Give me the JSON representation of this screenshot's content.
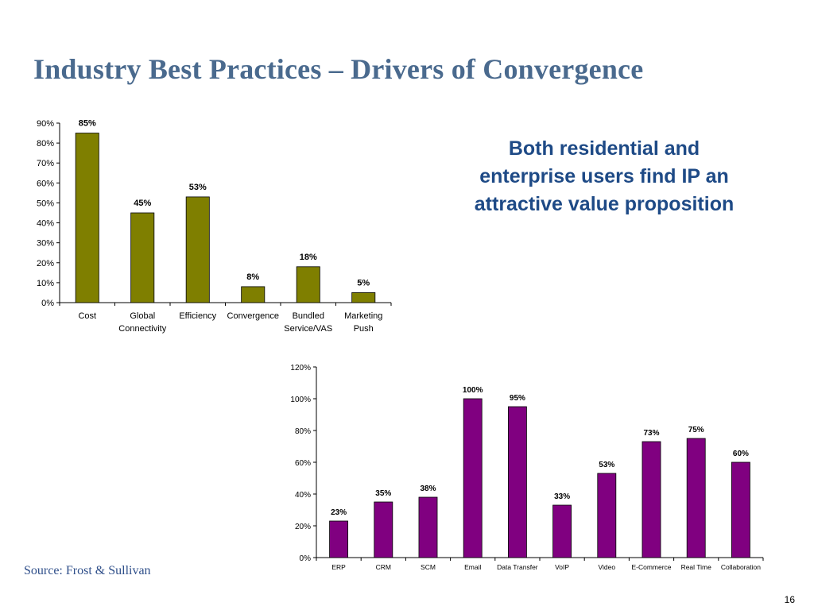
{
  "slide": {
    "title": "Industry Best Practices – Drivers of  Convergence",
    "callout": "Both residential and enterprise users find IP an attractive value proposition",
    "source": "Source: Frost & Sullivan",
    "page_number": "16"
  },
  "chart_data": [
    {
      "type": "bar",
      "categories": [
        [
          "Cost"
        ],
        [
          "Global",
          "Connectivity"
        ],
        [
          "Efficiency"
        ],
        [
          "Convergence"
        ],
        [
          "Bundled",
          "Service/VAS"
        ],
        [
          "Marketing",
          "Push"
        ]
      ],
      "values": [
        85,
        45,
        53,
        8,
        18,
        5
      ],
      "data_labels": [
        "85%",
        "45%",
        "53%",
        "8%",
        "18%",
        "5%"
      ],
      "ylim": [
        0,
        90
      ],
      "yticks": [
        "0%",
        "10%",
        "20%",
        "30%",
        "40%",
        "50%",
        "60%",
        "70%",
        "80%",
        "90%"
      ],
      "color": "#7f7f00",
      "title": "",
      "xlabel": "",
      "ylabel": ""
    },
    {
      "type": "bar",
      "categories": [
        [
          "ERP"
        ],
        [
          "CRM"
        ],
        [
          "SCM"
        ],
        [
          "Email"
        ],
        [
          "Data Transfer"
        ],
        [
          "VoIP"
        ],
        [
          "Video"
        ],
        [
          "E-Commerce"
        ],
        [
          "Real Time"
        ],
        [
          "Collaboration"
        ]
      ],
      "values": [
        23,
        35,
        38,
        100,
        95,
        33,
        53,
        73,
        75,
        60
      ],
      "data_labels": [
        "23%",
        "35%",
        "38%",
        "100%",
        "95%",
        "33%",
        "53%",
        "73%",
        "75%",
        "60%"
      ],
      "ylim": [
        0,
        120
      ],
      "yticks": [
        "0%",
        "20%",
        "40%",
        "60%",
        "80%",
        "100%",
        "120%"
      ],
      "color": "#800080",
      "title": "",
      "xlabel": "",
      "ylabel": ""
    }
  ]
}
